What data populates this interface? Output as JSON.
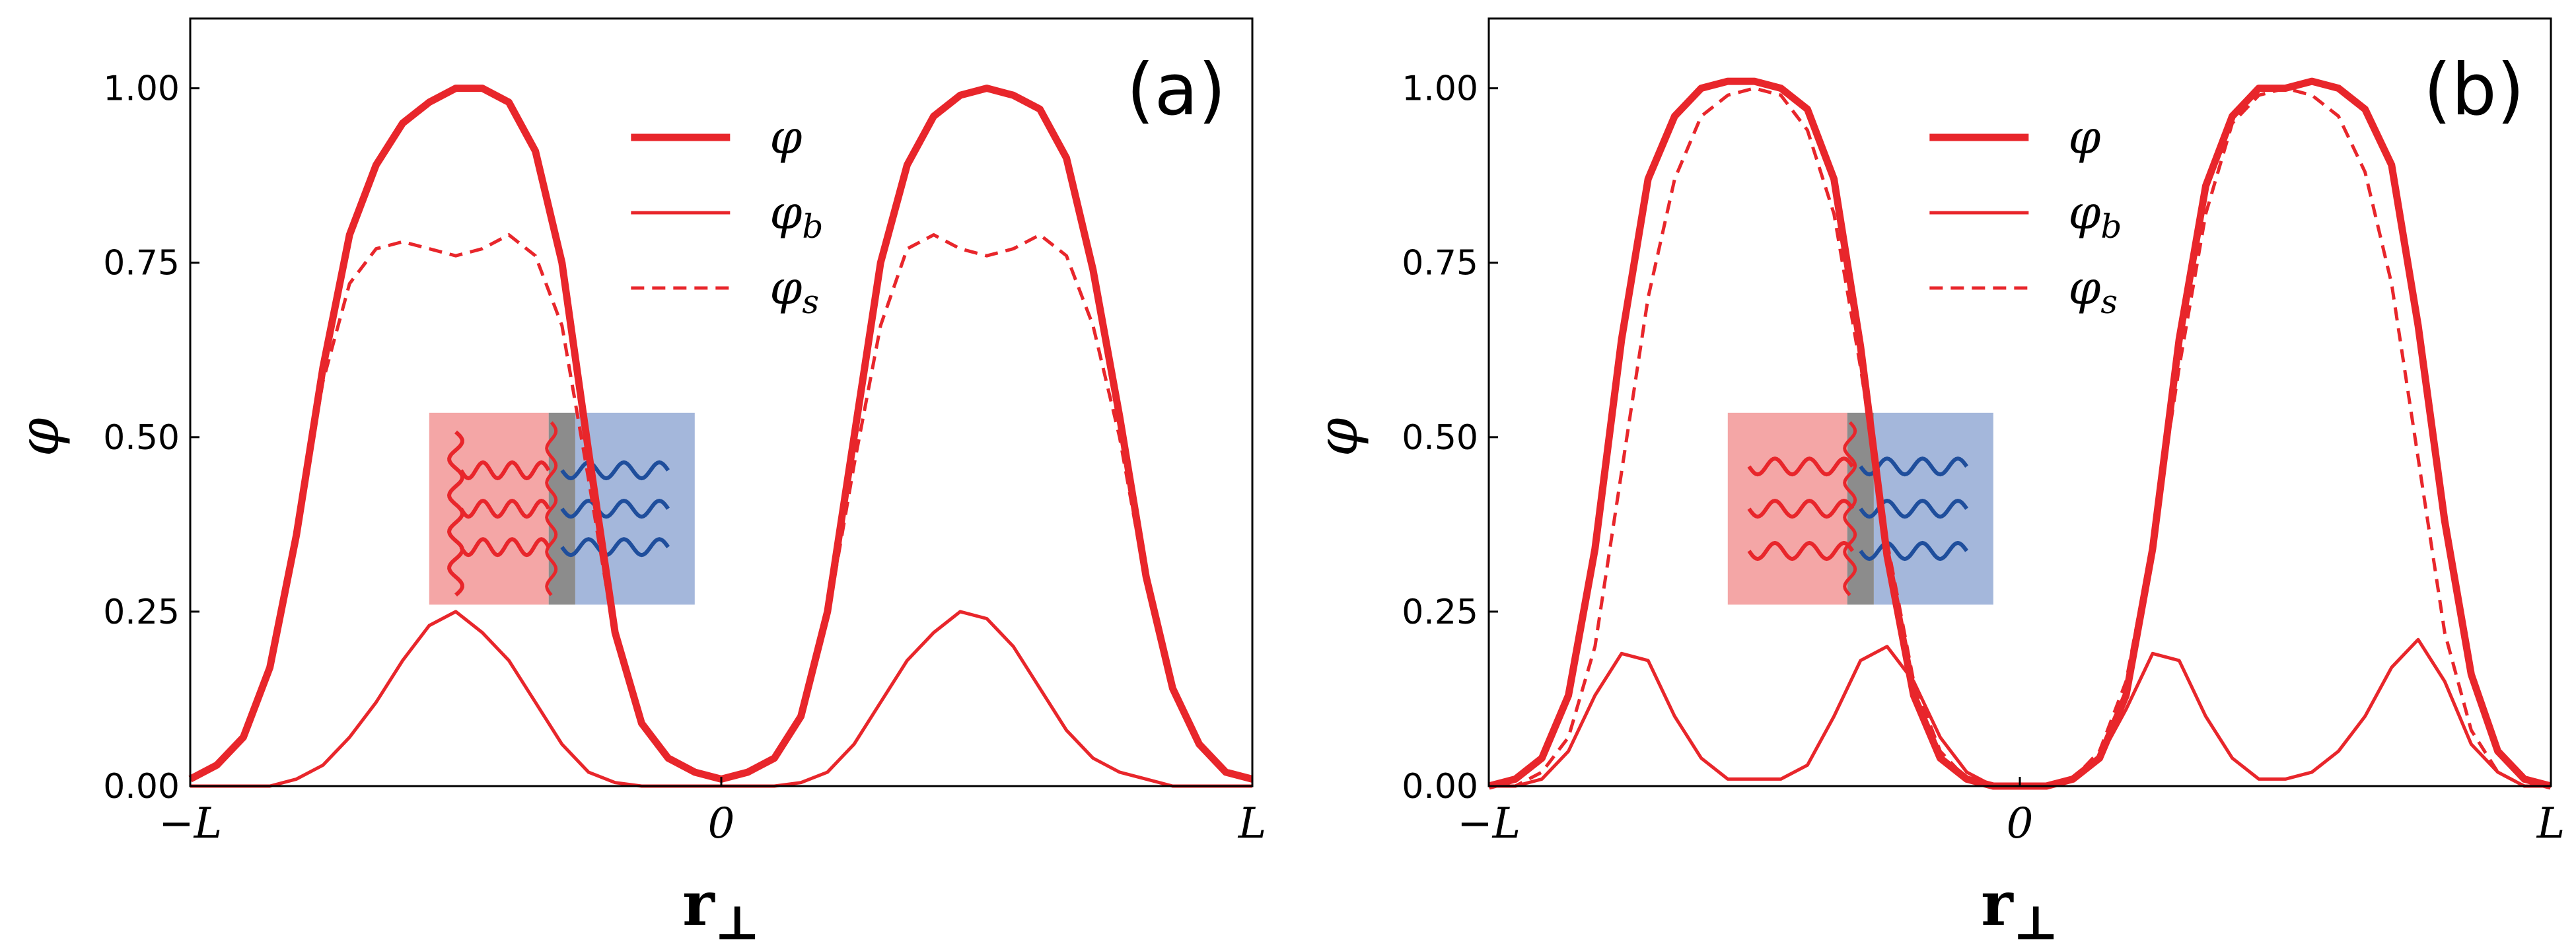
{
  "chart_data": [
    {
      "type": "line",
      "panel_label": "(a)",
      "xlabel_main": "r",
      "xlabel_sub": "⊥",
      "ylabel": "φ",
      "xlim": [
        -1,
        1
      ],
      "ylim": [
        0,
        1.1
      ],
      "xticks": [
        -1,
        0,
        1
      ],
      "xtick_labels": [
        "−L",
        "0",
        "L"
      ],
      "yticks": [
        0,
        0.25,
        0.5,
        0.75,
        1.0
      ],
      "ytick_labels": [
        "0.00",
        "0.25",
        "0.50",
        "0.75",
        "1.00"
      ],
      "legend_position": "upper-center",
      "x": [
        -1.0,
        -0.95,
        -0.9,
        -0.85,
        -0.8,
        -0.75,
        -0.7,
        -0.65,
        -0.6,
        -0.55,
        -0.5,
        -0.45,
        -0.4,
        -0.35,
        -0.3,
        -0.25,
        -0.2,
        -0.15,
        -0.1,
        -0.05,
        0.0,
        0.05,
        0.1,
        0.15,
        0.2,
        0.25,
        0.3,
        0.35,
        0.4,
        0.45,
        0.5,
        0.55,
        0.6,
        0.65,
        0.7,
        0.75,
        0.8,
        0.85,
        0.9,
        0.95,
        1.0
      ],
      "series": [
        {
          "name": "φ",
          "legend_main": "φ",
          "legend_sub": "",
          "style": "thick",
          "values": [
            0.01,
            0.03,
            0.07,
            0.17,
            0.36,
            0.6,
            0.79,
            0.89,
            0.95,
            0.98,
            1.0,
            1.0,
            0.98,
            0.91,
            0.75,
            0.48,
            0.22,
            0.09,
            0.04,
            0.02,
            0.01,
            0.02,
            0.04,
            0.1,
            0.25,
            0.5,
            0.75,
            0.89,
            0.96,
            0.99,
            1.0,
            0.99,
            0.97,
            0.9,
            0.74,
            0.53,
            0.3,
            0.14,
            0.06,
            0.02,
            0.01
          ]
        },
        {
          "name": "φ_b",
          "legend_main": "φ",
          "legend_sub": "b",
          "style": "thin",
          "values": [
            0.0,
            0.0,
            0.0,
            0.0,
            0.01,
            0.03,
            0.07,
            0.12,
            0.18,
            0.23,
            0.25,
            0.22,
            0.18,
            0.12,
            0.06,
            0.02,
            0.005,
            0.0,
            0.0,
            0.0,
            0.0,
            0.0,
            0.0,
            0.005,
            0.02,
            0.06,
            0.12,
            0.18,
            0.22,
            0.25,
            0.24,
            0.2,
            0.14,
            0.08,
            0.04,
            0.02,
            0.01,
            0.0,
            0.0,
            0.0,
            0.0
          ]
        },
        {
          "name": "φ_s",
          "legend_main": "φ",
          "legend_sub": "s",
          "style": "dashed",
          "values": [
            0.01,
            0.03,
            0.07,
            0.17,
            0.36,
            0.58,
            0.72,
            0.77,
            0.78,
            0.77,
            0.76,
            0.77,
            0.79,
            0.76,
            0.66,
            0.44,
            0.21,
            0.09,
            0.04,
            0.02,
            0.01,
            0.02,
            0.04,
            0.1,
            0.24,
            0.46,
            0.66,
            0.77,
            0.79,
            0.77,
            0.76,
            0.77,
            0.79,
            0.76,
            0.66,
            0.5,
            0.29,
            0.14,
            0.06,
            0.02,
            0.01
          ]
        }
      ],
      "inset": {
        "description": "schematic",
        "block_a_color": "#f4a6a6",
        "block_b_color": "#a4b7db",
        "interface_color": "#8c8c8c",
        "chain_a_color": "#e8262b",
        "chain_b_color": "#1f4e9c",
        "variant": "grafted"
      }
    },
    {
      "type": "line",
      "panel_label": "(b)",
      "xlabel_main": "r",
      "xlabel_sub": "⊥",
      "ylabel": "φ",
      "xlim": [
        -1,
        1
      ],
      "ylim": [
        0,
        1.1
      ],
      "xticks": [
        -1,
        0,
        1
      ],
      "xtick_labels": [
        "−L",
        "0",
        "L"
      ],
      "yticks": [
        0,
        0.25,
        0.5,
        0.75,
        1.0
      ],
      "ytick_labels": [
        "0.00",
        "0.25",
        "0.50",
        "0.75",
        "1.00"
      ],
      "legend_position": "upper-center",
      "x": [
        -1.0,
        -0.95,
        -0.9,
        -0.85,
        -0.8,
        -0.75,
        -0.7,
        -0.65,
        -0.6,
        -0.55,
        -0.5,
        -0.45,
        -0.4,
        -0.35,
        -0.3,
        -0.25,
        -0.2,
        -0.15,
        -0.1,
        -0.05,
        0.0,
        0.05,
        0.1,
        0.15,
        0.2,
        0.25,
        0.3,
        0.35,
        0.4,
        0.45,
        0.5,
        0.55,
        0.6,
        0.65,
        0.7,
        0.75,
        0.8,
        0.85,
        0.9,
        0.95,
        1.0
      ],
      "series": [
        {
          "name": "φ",
          "legend_main": "φ",
          "legend_sub": "",
          "style": "thick",
          "values": [
            0.0,
            0.01,
            0.04,
            0.13,
            0.34,
            0.64,
            0.87,
            0.96,
            1.0,
            1.01,
            1.01,
            1.0,
            0.97,
            0.87,
            0.63,
            0.33,
            0.13,
            0.04,
            0.01,
            0.0,
            0.0,
            0.0,
            0.01,
            0.04,
            0.13,
            0.34,
            0.64,
            0.86,
            0.96,
            1.0,
            1.0,
            1.01,
            1.0,
            0.97,
            0.89,
            0.66,
            0.38,
            0.16,
            0.05,
            0.01,
            0.0
          ]
        },
        {
          "name": "φ_b",
          "legend_main": "φ",
          "legend_sub": "b",
          "style": "thin",
          "values": [
            0.0,
            0.0,
            0.01,
            0.05,
            0.13,
            0.19,
            0.18,
            0.1,
            0.04,
            0.01,
            0.01,
            0.01,
            0.03,
            0.1,
            0.18,
            0.2,
            0.15,
            0.07,
            0.02,
            0.0,
            0.0,
            0.0,
            0.01,
            0.04,
            0.11,
            0.19,
            0.18,
            0.1,
            0.04,
            0.01,
            0.01,
            0.02,
            0.05,
            0.1,
            0.17,
            0.21,
            0.15,
            0.06,
            0.02,
            0.0,
            0.0
          ]
        },
        {
          "name": "φ_s",
          "legend_main": "φ",
          "legend_sub": "s",
          "style": "dashed",
          "values": [
            0.0,
            0.0,
            0.02,
            0.07,
            0.2,
            0.45,
            0.7,
            0.87,
            0.96,
            0.99,
            1.0,
            0.99,
            0.94,
            0.82,
            0.6,
            0.35,
            0.15,
            0.05,
            0.01,
            0.0,
            0.0,
            0.0,
            0.01,
            0.05,
            0.15,
            0.35,
            0.6,
            0.82,
            0.95,
            0.99,
            1.0,
            0.99,
            0.96,
            0.88,
            0.72,
            0.47,
            0.22,
            0.08,
            0.02,
            0.0,
            0.0
          ]
        }
      ],
      "inset": {
        "description": "schematic",
        "block_a_color": "#f4a6a6",
        "block_b_color": "#a4b7db",
        "interface_color": "#8c8c8c",
        "chain_a_color": "#e8262b",
        "chain_b_color": "#1f4e9c",
        "variant": "diblock"
      }
    }
  ],
  "colors": {
    "curve": "#e8262b",
    "axis": "#000000"
  }
}
